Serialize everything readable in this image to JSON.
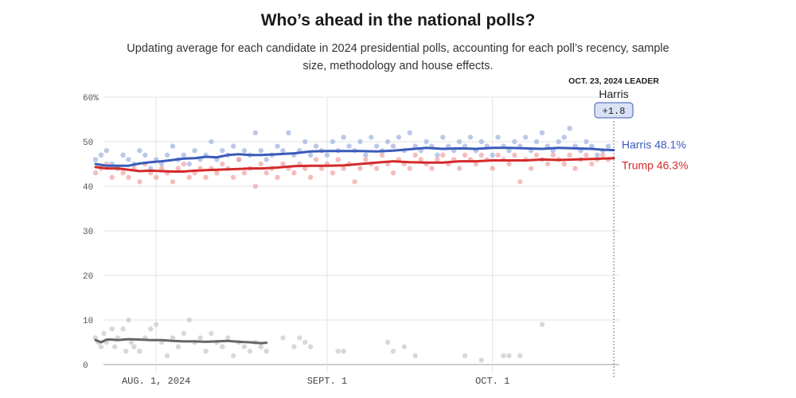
{
  "title": "Who’s ahead in the national polls?",
  "subtitle": "Updating average for each candidate in 2024 presidential polls, accounting for each poll’s recency, sample size, methodology and house effects.",
  "colors": {
    "harris": "#3a5bb8",
    "trump": "#d42a2a",
    "other": "#666666",
    "harris_dot": "#9fb0e0",
    "trump_dot": "#f0a3a3",
    "other_dot": "#c8c8c8",
    "grid": "#e2e2e2"
  },
  "chart_data": {
    "type": "line",
    "title": "Who’s ahead in the national polls?",
    "ylabel": "",
    "xlabel": "",
    "ylim": [
      0,
      60
    ],
    "xlim_days": [
      0,
      95
    ],
    "x_unit": "days since Jul 21, 2024",
    "y_ticks": [
      {
        "value": 60,
        "label": "60%"
      },
      {
        "value": 50,
        "label": "50"
      },
      {
        "value": 40,
        "label": "40"
      },
      {
        "value": 30,
        "label": "30"
      },
      {
        "value": 20,
        "label": "20"
      },
      {
        "value": 10,
        "label": "10"
      },
      {
        "value": 0,
        "label": "0"
      }
    ],
    "x_ticks": [
      {
        "day": 11,
        "label": "AUG. 1, 2024"
      },
      {
        "day": 42,
        "label": "SEPT. 1"
      },
      {
        "day": 72,
        "label": "OCT. 1"
      }
    ],
    "leader": {
      "date_label": "OCT. 23, 2024 LEADER",
      "name": "Harris",
      "margin": "+1.8",
      "day": 94
    },
    "series": [
      {
        "name": "Harris",
        "label": "Harris 48.1%",
        "color_key": "harris",
        "x": [
          0,
          2,
          4,
          6,
          8,
          10,
          12,
          14,
          16,
          18,
          20,
          22,
          24,
          26,
          28,
          30,
          33,
          36,
          39,
          42,
          45,
          48,
          51,
          54,
          57,
          60,
          63,
          66,
          69,
          72,
          75,
          78,
          81,
          84,
          87,
          90,
          92,
          94
        ],
        "values": [
          45.0,
          44.6,
          44.6,
          44.6,
          45.1,
          45.4,
          45.6,
          45.9,
          46.2,
          46.3,
          46.6,
          46.5,
          47.0,
          47.2,
          47.0,
          47.0,
          47.2,
          47.4,
          47.8,
          47.9,
          47.9,
          47.9,
          47.8,
          48.0,
          48.3,
          48.6,
          48.4,
          48.5,
          48.4,
          48.6,
          48.6,
          48.5,
          48.4,
          48.6,
          48.5,
          48.4,
          48.2,
          48.1
        ]
      },
      {
        "name": "Trump",
        "label": "Trump 46.3%",
        "color_key": "trump",
        "x": [
          0,
          2,
          4,
          6,
          8,
          10,
          12,
          14,
          16,
          18,
          20,
          22,
          24,
          26,
          28,
          30,
          33,
          36,
          39,
          42,
          45,
          48,
          51,
          54,
          57,
          60,
          63,
          66,
          69,
          72,
          75,
          78,
          81,
          84,
          87,
          90,
          92,
          94
        ],
        "values": [
          44.3,
          44.0,
          44.0,
          43.7,
          43.4,
          43.5,
          43.4,
          43.3,
          43.3,
          43.5,
          43.6,
          43.7,
          43.8,
          43.9,
          44.0,
          44.0,
          44.2,
          44.5,
          44.6,
          44.6,
          44.7,
          45.0,
          45.3,
          45.6,
          45.4,
          45.3,
          45.3,
          45.6,
          45.6,
          45.8,
          45.8,
          45.8,
          46.0,
          45.9,
          46.0,
          46.1,
          46.2,
          46.3
        ]
      },
      {
        "name": "Other",
        "label": "",
        "color_key": "other",
        "x": [
          0,
          1,
          2,
          3,
          4,
          5,
          6,
          8,
          10,
          12,
          14,
          16,
          18,
          20,
          22,
          24,
          26,
          28,
          30,
          31
        ],
        "values": [
          5.5,
          5.0,
          5.6,
          5.6,
          5.5,
          5.6,
          5.7,
          5.6,
          5.5,
          5.5,
          5.3,
          5.2,
          5.2,
          5.1,
          5.2,
          5.3,
          5.1,
          5.0,
          4.8,
          4.9
        ]
      }
    ],
    "polls": {
      "Harris": [
        [
          0,
          46
        ],
        [
          1,
          47
        ],
        [
          2,
          48
        ],
        [
          3,
          45
        ],
        [
          4,
          44
        ],
        [
          5,
          47
        ],
        [
          6,
          46
        ],
        [
          7,
          45
        ],
        [
          8,
          48
        ],
        [
          9,
          47
        ],
        [
          10,
          44
        ],
        [
          11,
          46
        ],
        [
          12,
          45
        ],
        [
          13,
          47
        ],
        [
          14,
          49
        ],
        [
          15,
          46
        ],
        [
          16,
          47
        ],
        [
          17,
          45
        ],
        [
          18,
          48
        ],
        [
          19,
          46
        ],
        [
          20,
          47
        ],
        [
          21,
          50
        ],
        [
          22,
          46
        ],
        [
          23,
          48
        ],
        [
          24,
          47
        ],
        [
          25,
          49
        ],
        [
          26,
          46
        ],
        [
          27,
          48
        ],
        [
          28,
          47
        ],
        [
          29,
          52
        ],
        [
          30,
          48
        ],
        [
          31,
          46
        ],
        [
          32,
          47
        ],
        [
          33,
          49
        ],
        [
          34,
          48
        ],
        [
          35,
          52
        ],
        [
          36,
          47
        ],
        [
          37,
          48
        ],
        [
          38,
          50
        ],
        [
          39,
          47
        ],
        [
          40,
          49
        ],
        [
          41,
          48
        ],
        [
          42,
          47
        ],
        [
          43,
          50
        ],
        [
          44,
          48
        ],
        [
          45,
          51
        ],
        [
          46,
          49
        ],
        [
          47,
          48
        ],
        [
          48,
          50
        ],
        [
          49,
          47
        ],
        [
          50,
          51
        ],
        [
          51,
          49
        ],
        [
          52,
          48
        ],
        [
          53,
          50
        ],
        [
          54,
          49
        ],
        [
          55,
          51
        ],
        [
          56,
          48
        ],
        [
          57,
          52
        ],
        [
          58,
          49
        ],
        [
          59,
          48
        ],
        [
          60,
          50
        ],
        [
          61,
          49
        ],
        [
          62,
          47
        ],
        [
          63,
          51
        ],
        [
          64,
          49
        ],
        [
          65,
          48
        ],
        [
          66,
          50
        ],
        [
          67,
          49
        ],
        [
          68,
          51
        ],
        [
          69,
          48
        ],
        [
          70,
          50
        ],
        [
          71,
          49
        ],
        [
          72,
          47
        ],
        [
          73,
          51
        ],
        [
          74,
          49
        ],
        [
          75,
          48
        ],
        [
          76,
          50
        ],
        [
          77,
          49
        ],
        [
          78,
          51
        ],
        [
          79,
          48
        ],
        [
          80,
          50
        ],
        [
          81,
          52
        ],
        [
          82,
          49
        ],
        [
          83,
          48
        ],
        [
          84,
          50
        ],
        [
          85,
          51
        ],
        [
          86,
          53
        ],
        [
          87,
          49
        ],
        [
          88,
          48
        ],
        [
          89,
          50
        ],
        [
          90,
          49
        ],
        [
          91,
          47
        ],
        [
          92,
          48
        ],
        [
          93,
          49
        ]
      ],
      "Trump": [
        [
          0,
          43
        ],
        [
          1,
          44
        ],
        [
          2,
          45
        ],
        [
          3,
          42
        ],
        [
          4,
          44
        ],
        [
          5,
          43
        ],
        [
          6,
          42
        ],
        [
          7,
          44
        ],
        [
          8,
          41
        ],
        [
          9,
          45
        ],
        [
          10,
          43
        ],
        [
          11,
          42
        ],
        [
          12,
          44
        ],
        [
          13,
          43
        ],
        [
          14,
          41
        ],
        [
          15,
          44
        ],
        [
          16,
          45
        ],
        [
          17,
          42
        ],
        [
          18,
          43
        ],
        [
          19,
          44
        ],
        [
          20,
          42
        ],
        [
          21,
          44
        ],
        [
          22,
          43
        ],
        [
          23,
          45
        ],
        [
          24,
          44
        ],
        [
          25,
          42
        ],
        [
          26,
          46
        ],
        [
          27,
          43
        ],
        [
          28,
          44
        ],
        [
          29,
          40
        ],
        [
          30,
          45
        ],
        [
          31,
          43
        ],
        [
          32,
          44
        ],
        [
          33,
          42
        ],
        [
          34,
          45
        ],
        [
          35,
          44
        ],
        [
          36,
          43
        ],
        [
          37,
          45
        ],
        [
          38,
          44
        ],
        [
          39,
          42
        ],
        [
          40,
          46
        ],
        [
          41,
          44
        ],
        [
          42,
          45
        ],
        [
          43,
          43
        ],
        [
          44,
          46
        ],
        [
          45,
          44
        ],
        [
          46,
          45
        ],
        [
          47,
          41
        ],
        [
          48,
          44
        ],
        [
          49,
          46
        ],
        [
          50,
          45
        ],
        [
          51,
          44
        ],
        [
          52,
          47
        ],
        [
          53,
          45
        ],
        [
          54,
          43
        ],
        [
          55,
          46
        ],
        [
          56,
          45
        ],
        [
          57,
          44
        ],
        [
          58,
          47
        ],
        [
          59,
          46
        ],
        [
          60,
          45
        ],
        [
          61,
          44
        ],
        [
          62,
          46
        ],
        [
          63,
          47
        ],
        [
          64,
          45
        ],
        [
          65,
          46
        ],
        [
          66,
          44
        ],
        [
          67,
          47
        ],
        [
          68,
          46
        ],
        [
          69,
          45
        ],
        [
          70,
          47
        ],
        [
          71,
          46
        ],
        [
          72,
          44
        ],
        [
          73,
          47
        ],
        [
          74,
          46
        ],
        [
          75,
          45
        ],
        [
          76,
          47
        ],
        [
          77,
          41
        ],
        [
          78,
          46
        ],
        [
          79,
          44
        ],
        [
          80,
          47
        ],
        [
          81,
          46
        ],
        [
          82,
          45
        ],
        [
          83,
          47
        ],
        [
          84,
          46
        ],
        [
          85,
          45
        ],
        [
          86,
          47
        ],
        [
          87,
          44
        ],
        [
          88,
          46
        ],
        [
          89,
          47
        ],
        [
          90,
          45
        ],
        [
          91,
          46
        ],
        [
          92,
          47
        ],
        [
          93,
          46
        ]
      ],
      "Other": [
        [
          0,
          6
        ],
        [
          0.5,
          5
        ],
        [
          1,
          4
        ],
        [
          1.5,
          7
        ],
        [
          2,
          5
        ],
        [
          3,
          8
        ],
        [
          3.5,
          4
        ],
        [
          4,
          6
        ],
        [
          5,
          8
        ],
        [
          5.5,
          3
        ],
        [
          6,
          10
        ],
        [
          6.5,
          5
        ],
        [
          7,
          4
        ],
        [
          8,
          3
        ],
        [
          9,
          6
        ],
        [
          10,
          8
        ],
        [
          11,
          9
        ],
        [
          12,
          5
        ],
        [
          13,
          2
        ],
        [
          14,
          6
        ],
        [
          15,
          4
        ],
        [
          16,
          7
        ],
        [
          17,
          10
        ],
        [
          18,
          5
        ],
        [
          19,
          6
        ],
        [
          20,
          3
        ],
        [
          21,
          7
        ],
        [
          22,
          5
        ],
        [
          23,
          4
        ],
        [
          24,
          6
        ],
        [
          25,
          2
        ],
        [
          26,
          5
        ],
        [
          27,
          4
        ],
        [
          28,
          3
        ],
        [
          29,
          5
        ],
        [
          30,
          4
        ],
        [
          31,
          3
        ],
        [
          34,
          6
        ],
        [
          36,
          4
        ],
        [
          37,
          6
        ],
        [
          38,
          5
        ],
        [
          39,
          4
        ],
        [
          44,
          3
        ],
        [
          45,
          3
        ],
        [
          53,
          5
        ],
        [
          54,
          3
        ],
        [
          56,
          4
        ],
        [
          58,
          2
        ],
        [
          67,
          2
        ],
        [
          70,
          1
        ],
        [
          74,
          2
        ],
        [
          75,
          2
        ],
        [
          77,
          2
        ],
        [
          81,
          9
        ]
      ]
    }
  }
}
